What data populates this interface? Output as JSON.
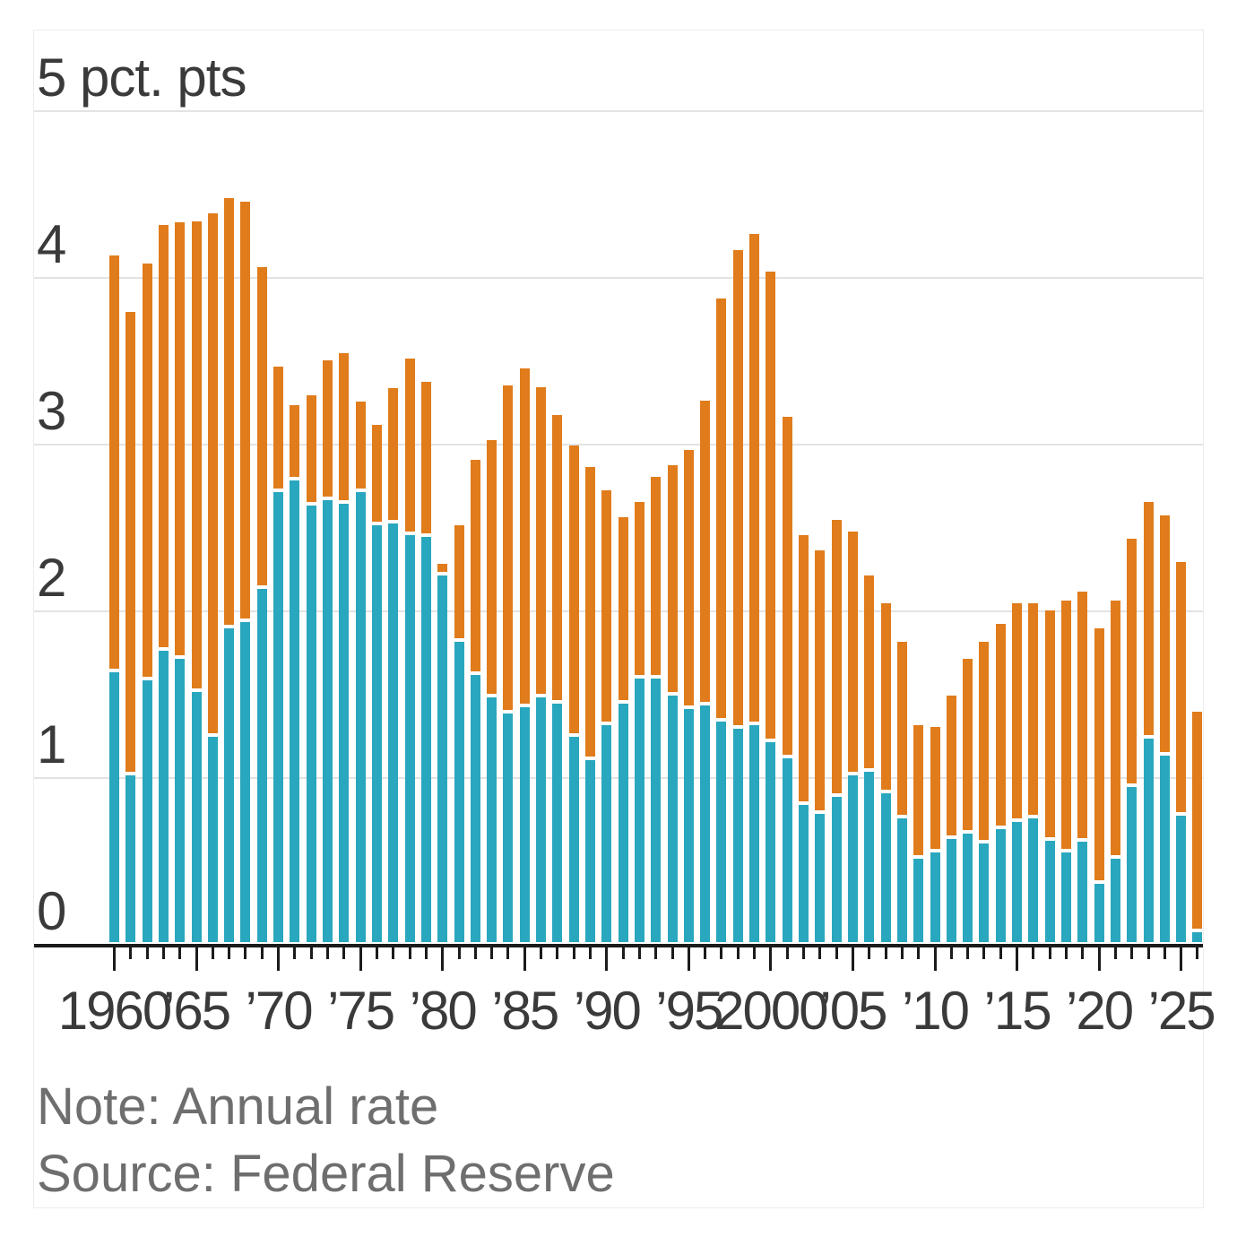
{
  "chart": {
    "unit_label": "5 pct. pts",
    "note": "Note: Annual rate",
    "source": "Source: Federal Reserve"
  },
  "chart_data": {
    "type": "bar",
    "stacked": true,
    "title": "",
    "unit_axis_label": "5 pct. pts",
    "note": "Note: Annual rate",
    "source": "Source: Federal Reserve",
    "ylim": [
      0,
      5
    ],
    "y_ticks": [
      0,
      1,
      2,
      3,
      4,
      5
    ],
    "grid": "horizontal",
    "legend": "none",
    "colors": {
      "teal": "#29a7be",
      "orange": "#e07c1b",
      "gridline": "#e3e3e3",
      "axis": "#1b1b1b",
      "axis_text": "#3a3a3a",
      "note_text": "#6e6e6e"
    },
    "categories": [
      1960,
      1961,
      1962,
      1963,
      1964,
      1965,
      1966,
      1967,
      1968,
      1969,
      1970,
      1971,
      1972,
      1973,
      1974,
      1975,
      1976,
      1977,
      1978,
      1979,
      1980,
      1981,
      1982,
      1983,
      1984,
      1985,
      1986,
      1987,
      1988,
      1989,
      1990,
      1991,
      1992,
      1993,
      1994,
      1995,
      1996,
      1997,
      1998,
      1999,
      2000,
      2001,
      2002,
      2003,
      2004,
      2005,
      2006,
      2007,
      2008,
      2009,
      2010,
      2011,
      2012,
      2013,
      2014,
      2015,
      2016,
      2017,
      2018,
      2019,
      2020,
      2021,
      2022,
      2023,
      2024,
      2025,
      2026
    ],
    "x_tick_labels": [
      {
        "year": 1960,
        "label": "1960"
      },
      {
        "year": 1965,
        "label": "’65"
      },
      {
        "year": 1970,
        "label": "’70"
      },
      {
        "year": 1975,
        "label": "’75"
      },
      {
        "year": 1980,
        "label": "’80"
      },
      {
        "year": 1985,
        "label": "’85"
      },
      {
        "year": 1990,
        "label": "’90"
      },
      {
        "year": 1995,
        "label": "’95"
      },
      {
        "year": 2000,
        "label": "2000"
      },
      {
        "year": 2005,
        "label": "’05"
      },
      {
        "year": 2010,
        "label": "’10"
      },
      {
        "year": 2015,
        "label": "’15"
      },
      {
        "year": 2020,
        "label": "’20"
      },
      {
        "year": 2025,
        "label": "’25"
      }
    ],
    "series": [
      {
        "name": "teal",
        "color": "#29a7be",
        "values": [
          1.62,
          1.0,
          1.57,
          1.75,
          1.7,
          1.5,
          1.23,
          1.88,
          1.92,
          2.12,
          2.7,
          2.77,
          2.62,
          2.65,
          2.63,
          2.7,
          2.5,
          2.51,
          2.44,
          2.43,
          2.2,
          1.8,
          1.6,
          1.47,
          1.37,
          1.41,
          1.47,
          1.43,
          1.23,
          1.09,
          1.3,
          1.43,
          1.58,
          1.58,
          1.48,
          1.4,
          1.42,
          1.32,
          1.28,
          1.3,
          1.2,
          1.1,
          0.82,
          0.77,
          0.87,
          1.0,
          1.02,
          0.89,
          0.74,
          0.5,
          0.54,
          0.62,
          0.65,
          0.59,
          0.68,
          0.72,
          0.74,
          0.61,
          0.54,
          0.6,
          0.35,
          0.5,
          0.93,
          1.22,
          1.12,
          0.76,
          0.06
        ]
      },
      {
        "name": "orange",
        "color": "#e07c1b",
        "values": [
          2.5,
          2.78,
          2.5,
          2.55,
          2.62,
          2.82,
          3.14,
          2.58,
          2.52,
          1.93,
          0.75,
          0.45,
          0.66,
          0.84,
          0.9,
          0.54,
          0.6,
          0.81,
          1.06,
          0.93,
          0.07,
          0.7,
          1.29,
          1.54,
          1.97,
          2.03,
          1.86,
          1.73,
          1.75,
          1.76,
          1.41,
          1.12,
          1.06,
          1.21,
          1.38,
          1.55,
          1.83,
          2.54,
          2.87,
          2.95,
          2.82,
          2.05,
          1.62,
          1.58,
          1.66,
          1.46,
          1.18,
          1.14,
          1.06,
          0.8,
          0.75,
          0.86,
          1.05,
          1.21,
          1.23,
          1.31,
          1.29,
          1.38,
          1.51,
          1.5,
          1.53,
          1.55,
          1.49,
          1.42,
          1.44,
          1.52,
          1.32
        ]
      }
    ]
  }
}
